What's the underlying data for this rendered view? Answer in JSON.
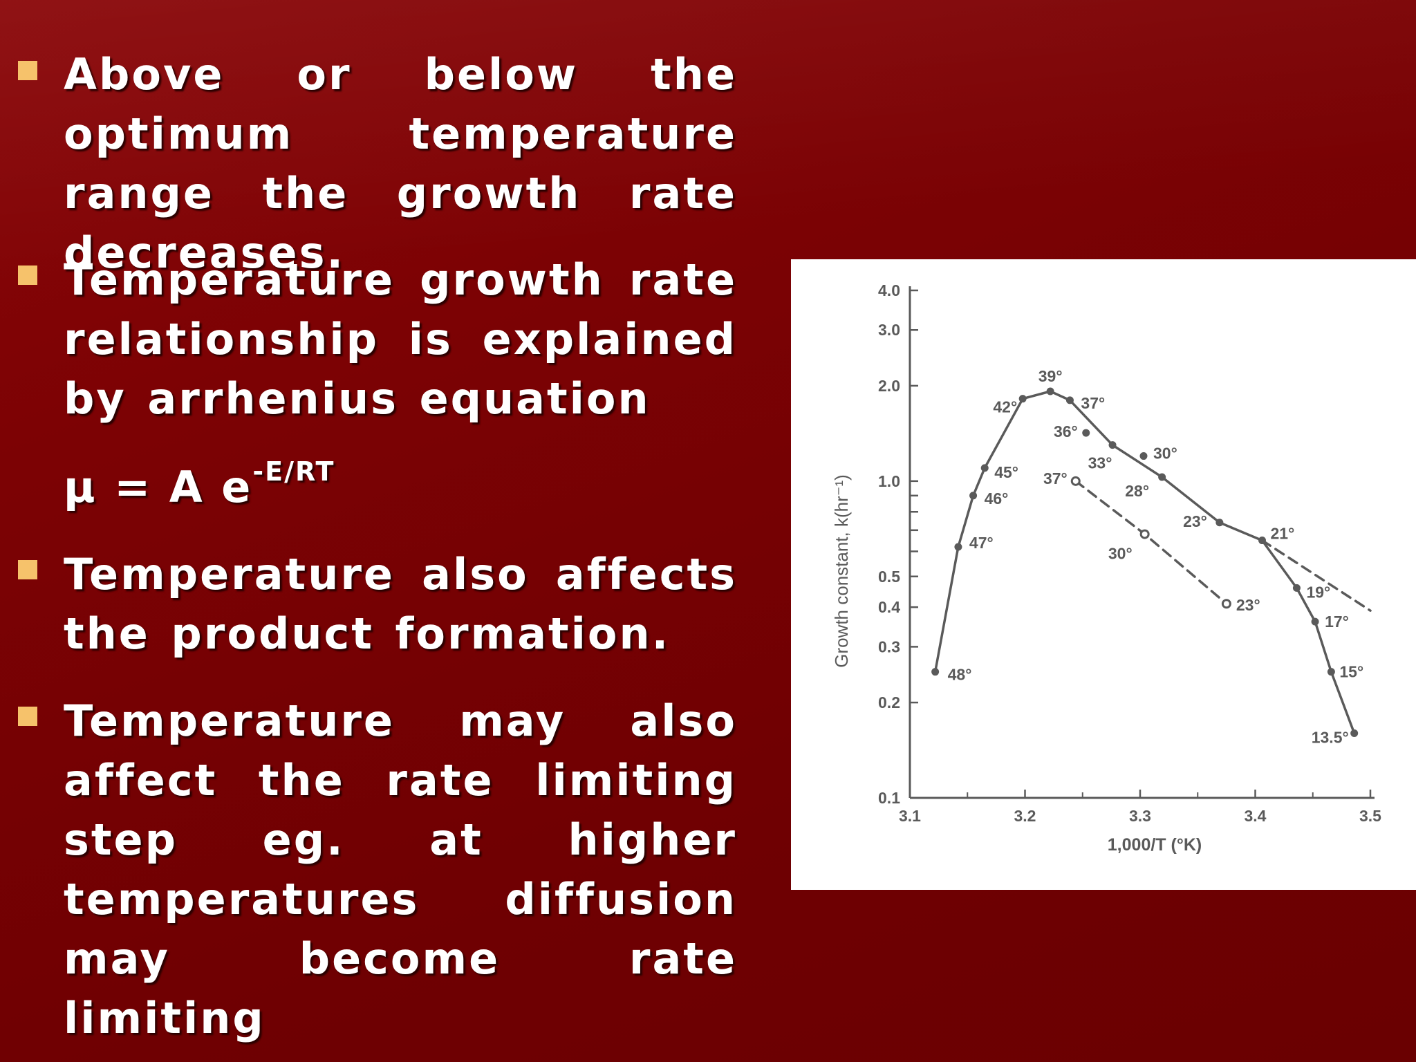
{
  "bullets": [
    {
      "text": "Above or below the optimum temperature range the growth rate decreases."
    },
    {
      "text": "Temperature growth rate relationship is explained by arrhenius equation"
    },
    {
      "text": "Temperature also affects the product formation."
    },
    {
      "text": "Temperature may also affect the rate limiting step eg. at higher temperatures diffusion may become rate limiting"
    }
  ],
  "equation": {
    "base": "μ = A e",
    "exponent": "-E/RT"
  },
  "colors": {
    "background": "#7a0204",
    "bullet": "#f6c26b",
    "text": "#ffffff",
    "curve": "#5a5a5a"
  },
  "chart_data": {
    "type": "line",
    "title": "",
    "xlabel": "1,000/T (°K)",
    "ylabel": "Growth constant, k(hr⁻¹)",
    "xlim": [
      3.1,
      3.5
    ],
    "ylim": [
      0.1,
      4.0
    ],
    "yscale": "log",
    "x_ticks": [
      "3.1",
      "3.2",
      "3.3",
      "3.4",
      "3.5"
    ],
    "y_ticks": [
      "0.1",
      "0.2",
      "0.3",
      "0.4",
      "0.5",
      "1.0",
      "2.0",
      "3.0",
      "4.0"
    ],
    "series": [
      {
        "style": "solid",
        "marker": "filled",
        "points": [
          {
            "label": "48°",
            "x": 3.122,
            "y": 0.25
          },
          {
            "label": "47°",
            "x": 3.142,
            "y": 0.62
          },
          {
            "label": "46°",
            "x": 3.155,
            "y": 0.9
          },
          {
            "label": "45°",
            "x": 3.165,
            "y": 1.1
          },
          {
            "label": "42°",
            "x": 3.198,
            "y": 1.82
          },
          {
            "label": "39°",
            "x": 3.222,
            "y": 1.92
          },
          {
            "label": "37°",
            "x": 3.239,
            "y": 1.8
          },
          {
            "label": "33°",
            "x": 3.276,
            "y": 1.3
          },
          {
            "label": "28°",
            "x": 3.319,
            "y": 1.03
          },
          {
            "label": "23°",
            "x": 3.369,
            "y": 0.74
          },
          {
            "label": "21°",
            "x": 3.406,
            "y": 0.65
          },
          {
            "label": "19°",
            "x": 3.436,
            "y": 0.46
          },
          {
            "label": "17°",
            "x": 3.452,
            "y": 0.36
          },
          {
            "label": "15°",
            "x": 3.466,
            "y": 0.25
          },
          {
            "label": "13.5°",
            "x": 3.486,
            "y": 0.16
          }
        ]
      },
      {
        "style": "dashed",
        "marker": "filled",
        "points": [
          {
            "label": "21°",
            "x": 3.406,
            "y": 0.65
          },
          {
            "label": "",
            "x": 3.5,
            "y": 0.39
          }
        ]
      },
      {
        "style": "dashed",
        "marker": "open",
        "points": [
          {
            "label": "37°",
            "x": 3.244,
            "y": 1.0
          },
          {
            "label": "30°",
            "x": 3.304,
            "y": 0.68
          },
          {
            "label": "23°",
            "x": 3.375,
            "y": 0.41
          }
        ]
      },
      {
        "style": "none",
        "marker": "filled",
        "points": [
          {
            "label": "36°",
            "x": 3.253,
            "y": 1.42
          },
          {
            "label": "30°",
            "x": 3.303,
            "y": 1.2
          }
        ]
      }
    ]
  }
}
